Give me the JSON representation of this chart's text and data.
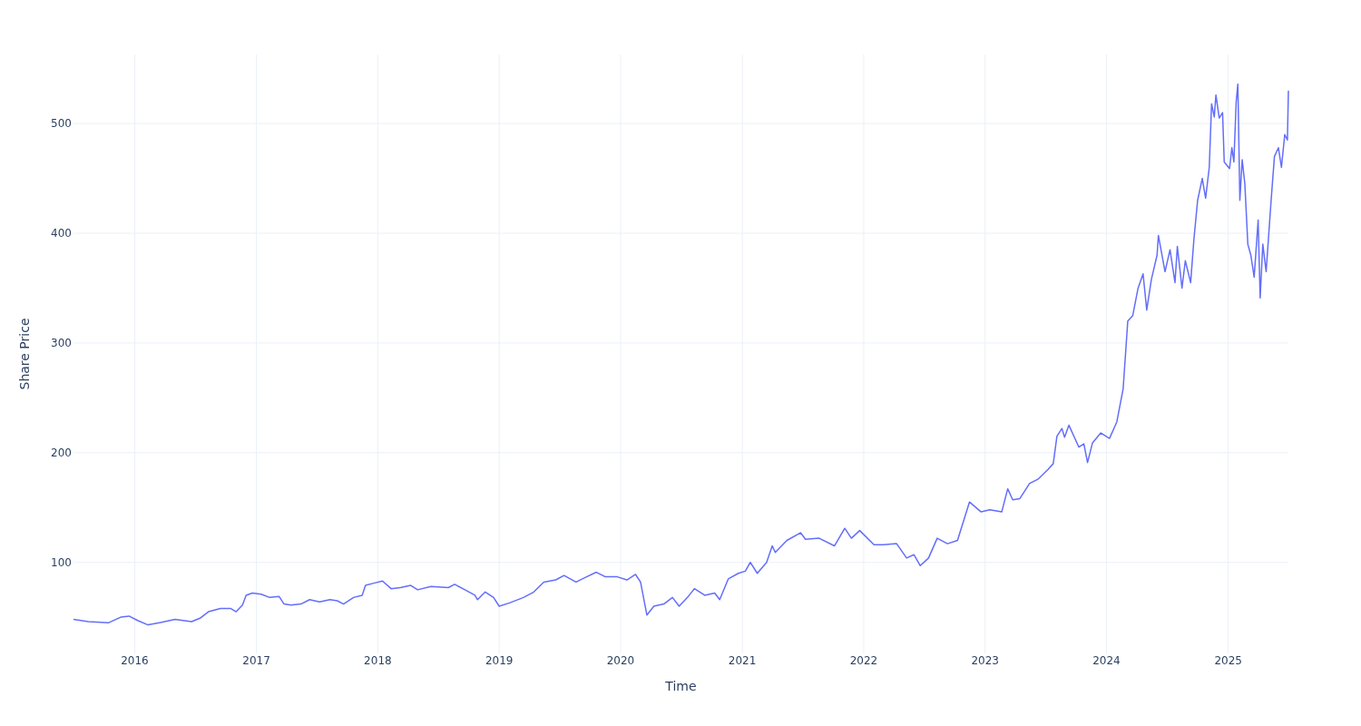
{
  "chart_data": {
    "type": "line",
    "xlabel": "Time",
    "ylabel": "Share Price",
    "xlim": [
      "2015-07-01",
      "2025-07-01"
    ],
    "ylim": [
      17,
      563
    ],
    "xticks": [
      {
        "value": "2016",
        "label": "2016"
      },
      {
        "value": "2017",
        "label": "2017"
      },
      {
        "value": "2018",
        "label": "2018"
      },
      {
        "value": "2019",
        "label": "2019"
      },
      {
        "value": "2020",
        "label": "2020"
      },
      {
        "value": "2021",
        "label": "2021"
      },
      {
        "value": "2022",
        "label": "2022"
      },
      {
        "value": "2023",
        "label": "2023"
      },
      {
        "value": "2024",
        "label": "2024"
      },
      {
        "value": "2025",
        "label": "2025"
      }
    ],
    "yticks": [
      100,
      200,
      300,
      400,
      500
    ],
    "grid": true,
    "series": [
      {
        "color": "#636efa",
        "x": [
          "2015-07-01",
          "2015-08-15",
          "2015-10-15",
          "2015-11-20",
          "2015-12-15",
          "2016-01-10",
          "2016-02-10",
          "2016-03-15",
          "2016-05-01",
          "2016-06-20",
          "2016-07-15",
          "2016-08-10",
          "2016-09-15",
          "2016-10-15",
          "2016-11-01",
          "2016-11-20",
          "2016-12-01",
          "2016-12-20",
          "2017-01-15",
          "2017-02-10",
          "2017-03-10",
          "2017-03-25",
          "2017-04-15",
          "2017-05-15",
          "2017-06-10",
          "2017-07-10",
          "2017-08-10",
          "2017-09-01",
          "2017-09-20",
          "2017-10-20",
          "2017-11-15",
          "2017-11-25",
          "2017-12-20",
          "2018-01-15",
          "2018-02-10",
          "2018-03-10",
          "2018-04-10",
          "2018-05-01",
          "2018-06-10",
          "2018-08-01",
          "2018-08-20",
          "2018-09-20",
          "2018-10-20",
          "2018-10-28",
          "2018-11-20",
          "2018-12-15",
          "2019-01-01",
          "2019-02-01",
          "2019-03-15",
          "2019-04-15",
          "2019-05-15",
          "2019-06-20",
          "2019-07-15",
          "2019-08-20",
          "2019-09-15",
          "2019-10-20",
          "2019-11-15",
          "2019-12-20",
          "2020-01-20",
          "2020-02-15",
          "2020-03-01",
          "2020-03-20",
          "2020-04-10",
          "2020-05-10",
          "2020-06-05",
          "2020-06-25",
          "2020-07-20",
          "2020-08-10",
          "2020-09-10",
          "2020-10-10",
          "2020-10-25",
          "2020-11-20",
          "2020-12-20",
          "2021-01-10",
          "2021-01-25",
          "2021-02-15",
          "2021-03-15",
          "2021-04-01",
          "2021-04-10",
          "2021-05-15",
          "2021-06-25",
          "2021-07-10",
          "2021-08-20",
          "2021-10-05",
          "2021-11-05",
          "2021-11-25",
          "2021-12-20",
          "2022-02-01",
          "2022-03-01",
          "2022-04-10",
          "2022-05-10",
          "2022-06-01",
          "2022-06-20",
          "2022-07-15",
          "2022-08-10",
          "2022-09-10",
          "2022-10-10",
          "2022-11-15",
          "2022-12-20",
          "2023-01-15",
          "2023-02-20",
          "2023-03-10",
          "2023-03-25",
          "2023-04-15",
          "2023-05-15",
          "2023-06-10",
          "2023-07-10",
          "2023-07-25",
          "2023-08-05",
          "2023-08-20",
          "2023-08-28",
          "2023-09-10",
          "2023-10-10",
          "2023-10-25",
          "2023-11-05",
          "2023-11-20",
          "2023-12-15",
          "2024-01-10",
          "2024-02-01",
          "2024-02-20",
          "2024-03-05",
          "2024-03-20",
          "2024-04-05",
          "2024-04-20",
          "2024-05-01",
          "2024-05-15",
          "2024-06-01",
          "2024-06-05",
          "2024-06-25",
          "2024-07-10",
          "2024-07-25",
          "2024-08-01",
          "2024-08-15",
          "2024-08-25",
          "2024-09-10",
          "2024-09-20",
          "2024-10-01",
          "2024-10-15",
          "2024-10-25",
          "2024-11-05",
          "2024-11-12",
          "2024-11-20",
          "2024-11-25",
          "2024-12-05",
          "2024-12-15",
          "2024-12-20",
          "2025-01-05",
          "2025-01-12",
          "2025-01-18",
          "2025-01-25",
          "2025-01-30",
          "2025-02-05",
          "2025-02-12",
          "2025-02-20",
          "2025-03-01",
          "2025-03-10",
          "2025-03-20",
          "2025-04-01",
          "2025-04-07",
          "2025-04-15",
          "2025-04-25",
          "2025-05-10",
          "2025-05-20",
          "2025-06-01",
          "2025-06-10",
          "2025-06-20",
          "2025-06-28",
          "2025-07-01"
        ],
        "values": [
          48,
          46,
          45,
          50,
          51,
          47,
          43,
          45,
          48,
          46,
          49,
          55,
          58,
          58,
          55,
          61,
          70,
          72,
          71,
          68,
          69,
          62,
          61,
          62,
          66,
          64,
          66,
          65,
          62,
          68,
          70,
          79,
          81,
          83,
          76,
          77,
          79,
          75,
          78,
          77,
          80,
          75,
          70,
          66,
          73,
          68,
          60,
          63,
          68,
          73,
          82,
          84,
          88,
          82,
          86,
          91,
          87,
          87,
          84,
          89,
          82,
          52,
          60,
          62,
          68,
          60,
          68,
          76,
          70,
          72,
          66,
          85,
          90,
          92,
          100,
          90,
          100,
          115,
          109,
          120,
          127,
          121,
          122,
          115,
          131,
          122,
          129,
          116,
          116,
          117,
          104,
          107,
          97,
          104,
          122,
          117,
          120,
          155,
          146,
          148,
          146,
          167,
          157,
          158,
          172,
          176,
          185,
          190,
          215,
          222,
          214,
          225,
          205,
          208,
          191,
          209,
          218,
          213,
          228,
          258,
          320,
          325,
          350,
          363,
          330,
          358,
          380,
          398,
          365,
          385,
          355,
          388,
          350,
          375,
          355,
          395,
          430,
          450,
          432,
          460,
          518,
          506,
          526,
          505,
          510,
          465,
          459,
          478,
          465,
          520,
          536,
          430,
          467,
          445,
          390,
          380,
          360,
          412,
          341,
          390,
          365,
          430,
          470,
          478,
          460,
          490,
          485,
          530
        ]
      }
    ]
  }
}
